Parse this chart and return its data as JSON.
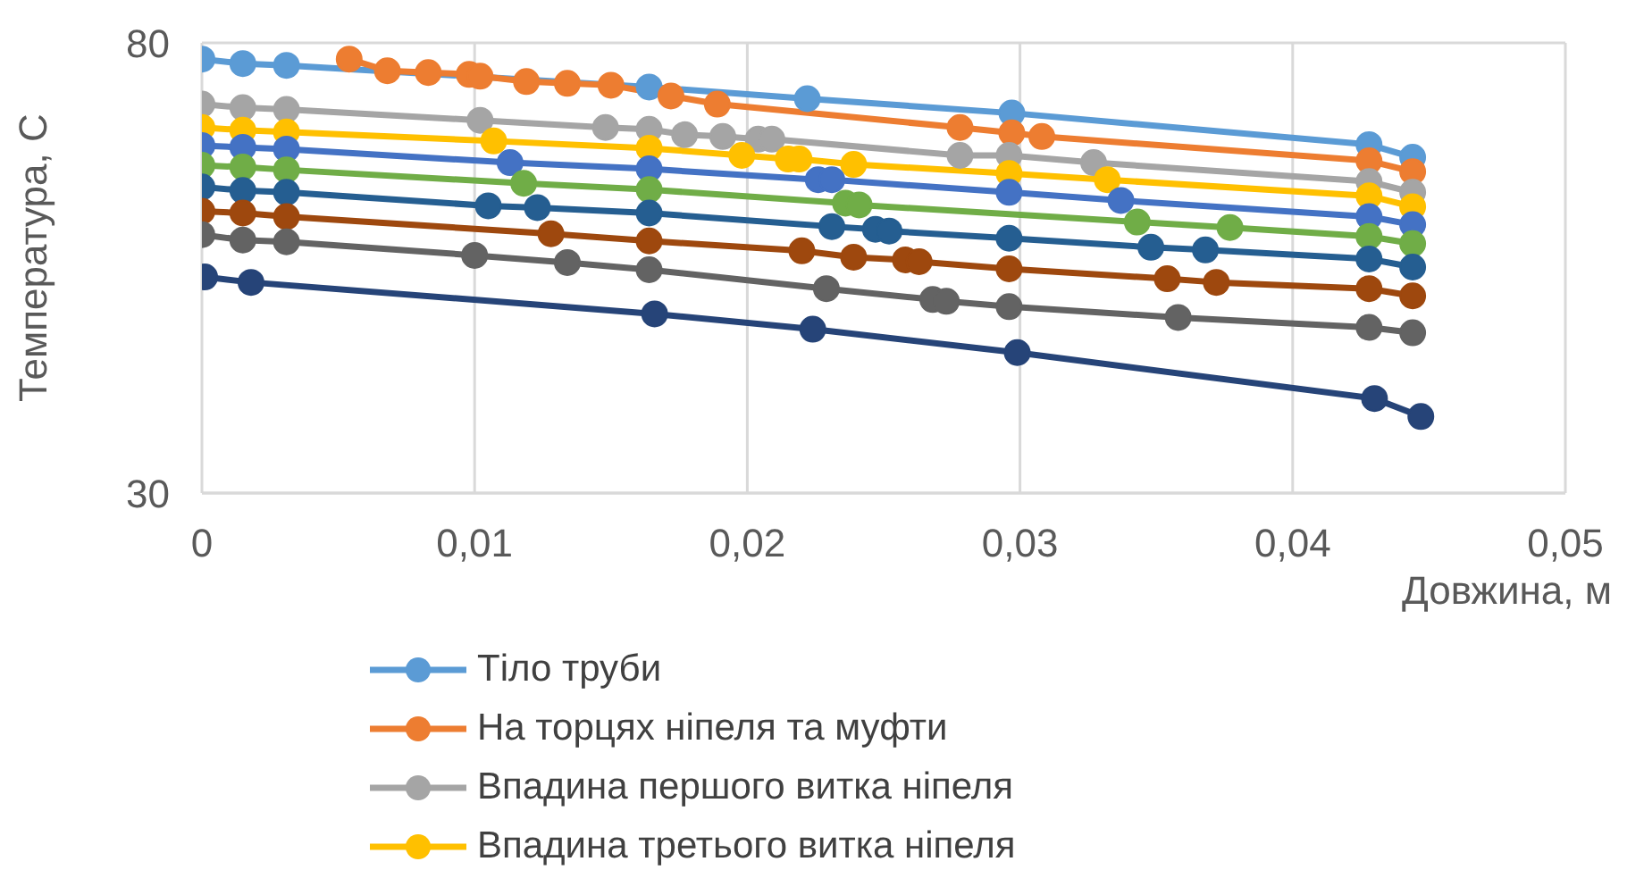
{
  "chart_data": {
    "type": "line",
    "ylabel": "Температура, С",
    "xlabel": "Довжина, м",
    "xlim": [
      0,
      0.05
    ],
    "xticks": [
      0,
      {
        "value": 0.01,
        "label": "0,01"
      },
      {
        "value": 0.02,
        "label": "0,02"
      },
      {
        "value": 0.03,
        "label": "0,03"
      },
      {
        "value": 0.04,
        "label": "0,04"
      },
      {
        "value": 0.05,
        "label": "0,05"
      }
    ],
    "ylim": [
      30,
      80
    ],
    "yticks": [
      30,
      80
    ],
    "grid": true,
    "legend": "bottom",
    "marker": "circle",
    "line_style": "solid",
    "series": [
      {
        "name": "Тіло труби",
        "color": "#5b9bd5",
        "x": [
          0,
          0.0015,
          0.0031,
          0.0164,
          0.0222,
          0.0297,
          0.0428,
          0.0444
        ],
        "values": [
          78.2,
          77.7,
          77.5,
          75.1,
          73.8,
          72.2,
          68.7,
          67.3
        ]
      },
      {
        "name": "На торцях ніпеля та муфти",
        "color": "#ed7d31",
        "x": [
          0.0054,
          0.0068,
          0.0083,
          0.0098,
          0.0102,
          0.0119,
          0.0134,
          0.015,
          0.0172,
          0.0189,
          0.0278,
          0.0297,
          0.0308,
          0.0428,
          0.0444
        ],
        "values": [
          78.2,
          76.9,
          76.7,
          76.5,
          76.3,
          75.7,
          75.5,
          75.3,
          74.1,
          73.2,
          70.6,
          70.0,
          69.6,
          66.9,
          65.7
        ]
      },
      {
        "name": "Впадина першого витка ніпеля",
        "color": "#a5a5a5",
        "x": [
          0,
          0.0015,
          0.0031,
          0.0102,
          0.0148,
          0.0164,
          0.0177,
          0.0191,
          0.0204,
          0.0209,
          0.0278,
          0.0296,
          0.0327,
          0.0428,
          0.0444
        ],
        "values": [
          73.2,
          72.8,
          72.6,
          71.4,
          70.6,
          70.4,
          69.8,
          69.6,
          69.3,
          69.3,
          67.5,
          67.5,
          66.7,
          64.6,
          63.4
        ]
      },
      {
        "name": "Впадина третього витка ніпеля",
        "color": "#ffc000",
        "x": [
          0,
          0.0015,
          0.0031,
          0.0107,
          0.0164,
          0.0198,
          0.0215,
          0.0219,
          0.0239,
          0.0296,
          0.0332,
          0.0428,
          0.0444
        ],
        "values": [
          70.6,
          70.3,
          70.1,
          69.1,
          68.3,
          67.5,
          67.1,
          67.1,
          66.5,
          65.5,
          64.8,
          63.0,
          61.8
        ]
      },
      {
        "color": "#4472c4",
        "x": [
          0,
          0.0015,
          0.0031,
          0.0113,
          0.0164,
          0.0226,
          0.0231,
          0.0296,
          0.0337,
          0.0428,
          0.0444
        ],
        "values": [
          68.6,
          68.4,
          68.2,
          66.7,
          66.0,
          64.8,
          64.8,
          63.4,
          62.5,
          60.7,
          59.8
        ]
      },
      {
        "color": "#70ad47",
        "x": [
          0,
          0.0015,
          0.0031,
          0.0118,
          0.0164,
          0.0236,
          0.0241,
          0.0343,
          0.0377,
          0.0428,
          0.0444
        ],
        "values": [
          66.4,
          66.2,
          65.9,
          64.4,
          63.7,
          62.2,
          62.0,
          60.1,
          59.5,
          58.5,
          57.7
        ]
      },
      {
        "color": "#255e91",
        "x": [
          0,
          0.0015,
          0.0031,
          0.0105,
          0.0123,
          0.0164,
          0.0231,
          0.0247,
          0.0252,
          0.0296,
          0.0348,
          0.0368,
          0.0428,
          0.0444
        ],
        "values": [
          64.0,
          63.6,
          63.4,
          61.9,
          61.7,
          61.1,
          59.6,
          59.3,
          59.1,
          58.3,
          57.3,
          57.0,
          56.0,
          55.1
        ]
      },
      {
        "color": "#9e480e",
        "x": [
          0,
          0.0015,
          0.0031,
          0.0128,
          0.0164,
          0.022,
          0.0239,
          0.0258,
          0.0263,
          0.0296,
          0.0354,
          0.0372,
          0.0428,
          0.0444
        ],
        "values": [
          61.3,
          61.1,
          60.7,
          58.8,
          58.0,
          56.9,
          56.2,
          55.9,
          55.7,
          54.9,
          53.8,
          53.4,
          52.7,
          51.9
        ]
      },
      {
        "color": "#636363",
        "x": [
          0,
          0.0015,
          0.0031,
          0.01,
          0.0134,
          0.0164,
          0.0229,
          0.0268,
          0.0273,
          0.0296,
          0.0358,
          0.0428,
          0.0444
        ],
        "values": [
          58.7,
          58.1,
          57.9,
          56.4,
          55.6,
          54.8,
          52.7,
          51.5,
          51.3,
          50.7,
          49.5,
          48.4,
          47.8
        ]
      },
      {
        "color": "#264478",
        "x": [
          0.0001,
          0.0018,
          0.0166,
          0.0224,
          0.0299,
          0.043,
          0.0447
        ],
        "values": [
          54.0,
          53.4,
          49.9,
          48.2,
          45.6,
          40.5,
          38.5
        ]
      }
    ]
  }
}
